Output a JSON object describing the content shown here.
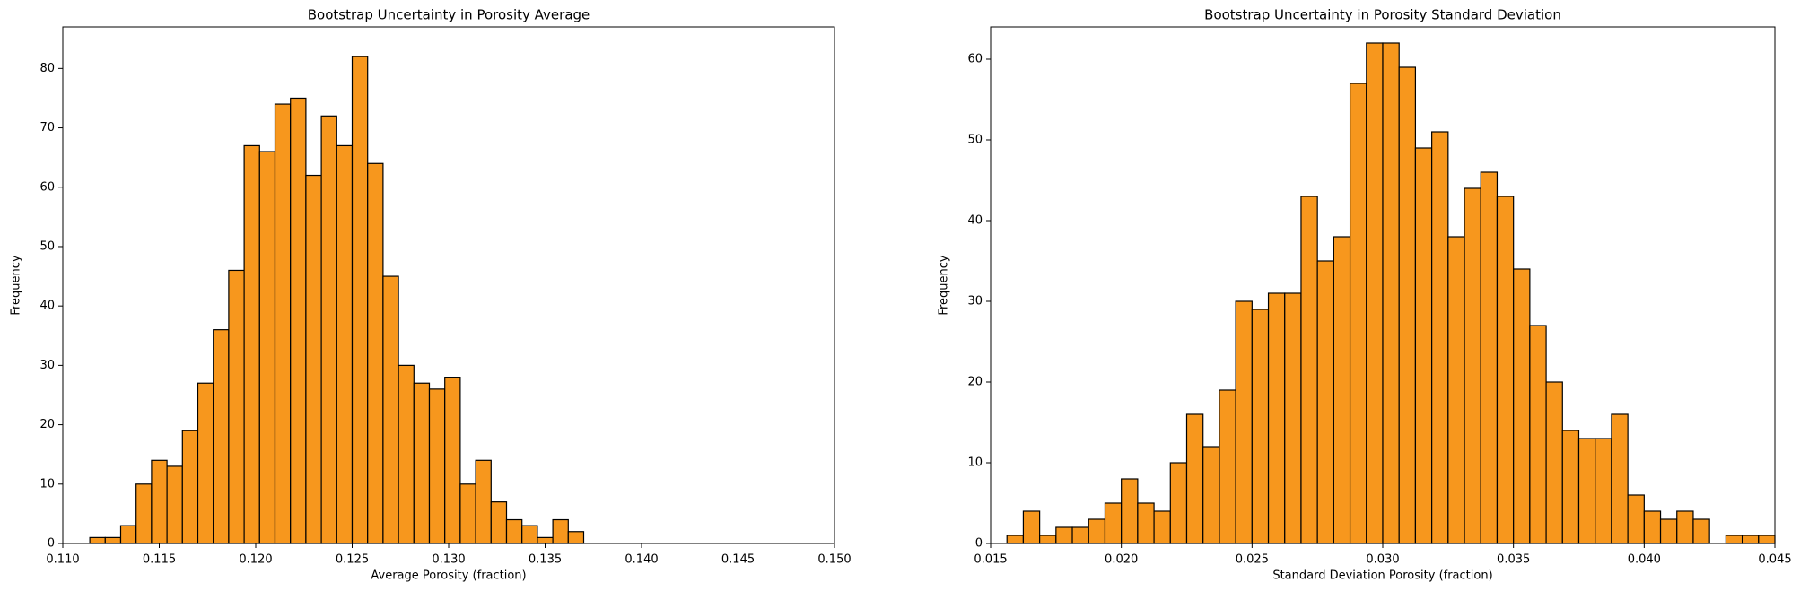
{
  "chart_data": [
    {
      "type": "histogram",
      "title": "Bootstrap Uncertainty in Porosity Average",
      "x_label": "Average Porosity (fraction)",
      "y_label": "Frequency",
      "bins": [
        0.1114,
        0.1122,
        0.113,
        0.1138,
        0.1146,
        0.1154,
        0.1162,
        0.117,
        0.1178,
        0.1186,
        0.1194,
        0.1202,
        0.121,
        0.1218,
        0.1226,
        0.1234,
        0.1242,
        0.125,
        0.1258,
        0.1266,
        0.1274,
        0.1282,
        0.129,
        0.1298,
        0.1306,
        0.1314,
        0.1322,
        0.133,
        0.1338,
        0.1346,
        0.1354,
        0.1362,
        0.137
      ],
      "values": [
        1,
        1,
        3,
        10,
        14,
        13,
        19,
        27,
        36,
        46,
        67,
        66,
        74,
        75,
        62,
        72,
        67,
        82,
        64,
        45,
        30,
        27,
        26,
        28,
        10,
        14,
        7,
        4,
        3,
        1,
        4,
        2
      ],
      "color": "#f7971d",
      "edgecolor": "#000000",
      "xlim": [
        0.11,
        0.15
      ],
      "ylim": [
        0,
        87
      ],
      "xticks": [
        {
          "value": 0.11,
          "label": "0.110"
        },
        {
          "value": 0.115,
          "label": "0.115"
        },
        {
          "value": 0.12,
          "label": "0.120"
        },
        {
          "value": 0.125,
          "label": "0.125"
        },
        {
          "value": 0.13,
          "label": "0.130"
        },
        {
          "value": 0.135,
          "label": "0.135"
        },
        {
          "value": 0.14,
          "label": "0.140"
        },
        {
          "value": 0.145,
          "label": "0.145"
        },
        {
          "value": 0.15,
          "label": "0.150"
        }
      ],
      "yticks": [
        0,
        10,
        20,
        30,
        40,
        50,
        60,
        70,
        80
      ]
    },
    {
      "type": "histogram",
      "title": "Bootstrap Uncertainty in Porosity Standard Deviation",
      "x_label": "Standard Deviation Porosity (fraction)",
      "y_label": "Frequency",
      "bins": [
        0.015625,
        0.01625,
        0.016875,
        0.0175,
        0.018125,
        0.01875,
        0.019375,
        0.02,
        0.020625,
        0.02125,
        0.021875,
        0.0225,
        0.023125,
        0.02375,
        0.024375,
        0.025,
        0.025625,
        0.02625,
        0.026875,
        0.0275,
        0.028125,
        0.02875,
        0.029375,
        0.03,
        0.030625,
        0.03125,
        0.031875,
        0.0325,
        0.033125,
        0.03375,
        0.034375,
        0.035,
        0.035625,
        0.03625,
        0.036875,
        0.0375,
        0.038125,
        0.03875,
        0.039375,
        0.04,
        0.040625,
        0.04125,
        0.041875,
        0.0425,
        0.043125,
        0.04375,
        0.044375,
        0.045
      ],
      "values": [
        1,
        4,
        1,
        2,
        2,
        3,
        5,
        8,
        5,
        4,
        10,
        16,
        12,
        19,
        30,
        29,
        31,
        31,
        43,
        35,
        38,
        57,
        62,
        62,
        59,
        49,
        51,
        38,
        44,
        46,
        43,
        34,
        27,
        20,
        14,
        13,
        13,
        16,
        6,
        4,
        3,
        4,
        3,
        0,
        1,
        1,
        1
      ],
      "color": "#f7971d",
      "edgecolor": "#000000",
      "xlim": [
        0.015,
        0.045
      ],
      "ylim": [
        0,
        64
      ],
      "xticks": [
        {
          "value": 0.015,
          "label": "0.015"
        },
        {
          "value": 0.02,
          "label": "0.020"
        },
        {
          "value": 0.025,
          "label": "0.025"
        },
        {
          "value": 0.03,
          "label": "0.030"
        },
        {
          "value": 0.035,
          "label": "0.035"
        },
        {
          "value": 0.04,
          "label": "0.040"
        },
        {
          "value": 0.045,
          "label": "0.045"
        }
      ],
      "yticks": [
        0,
        10,
        20,
        30,
        40,
        50,
        60
      ]
    }
  ]
}
